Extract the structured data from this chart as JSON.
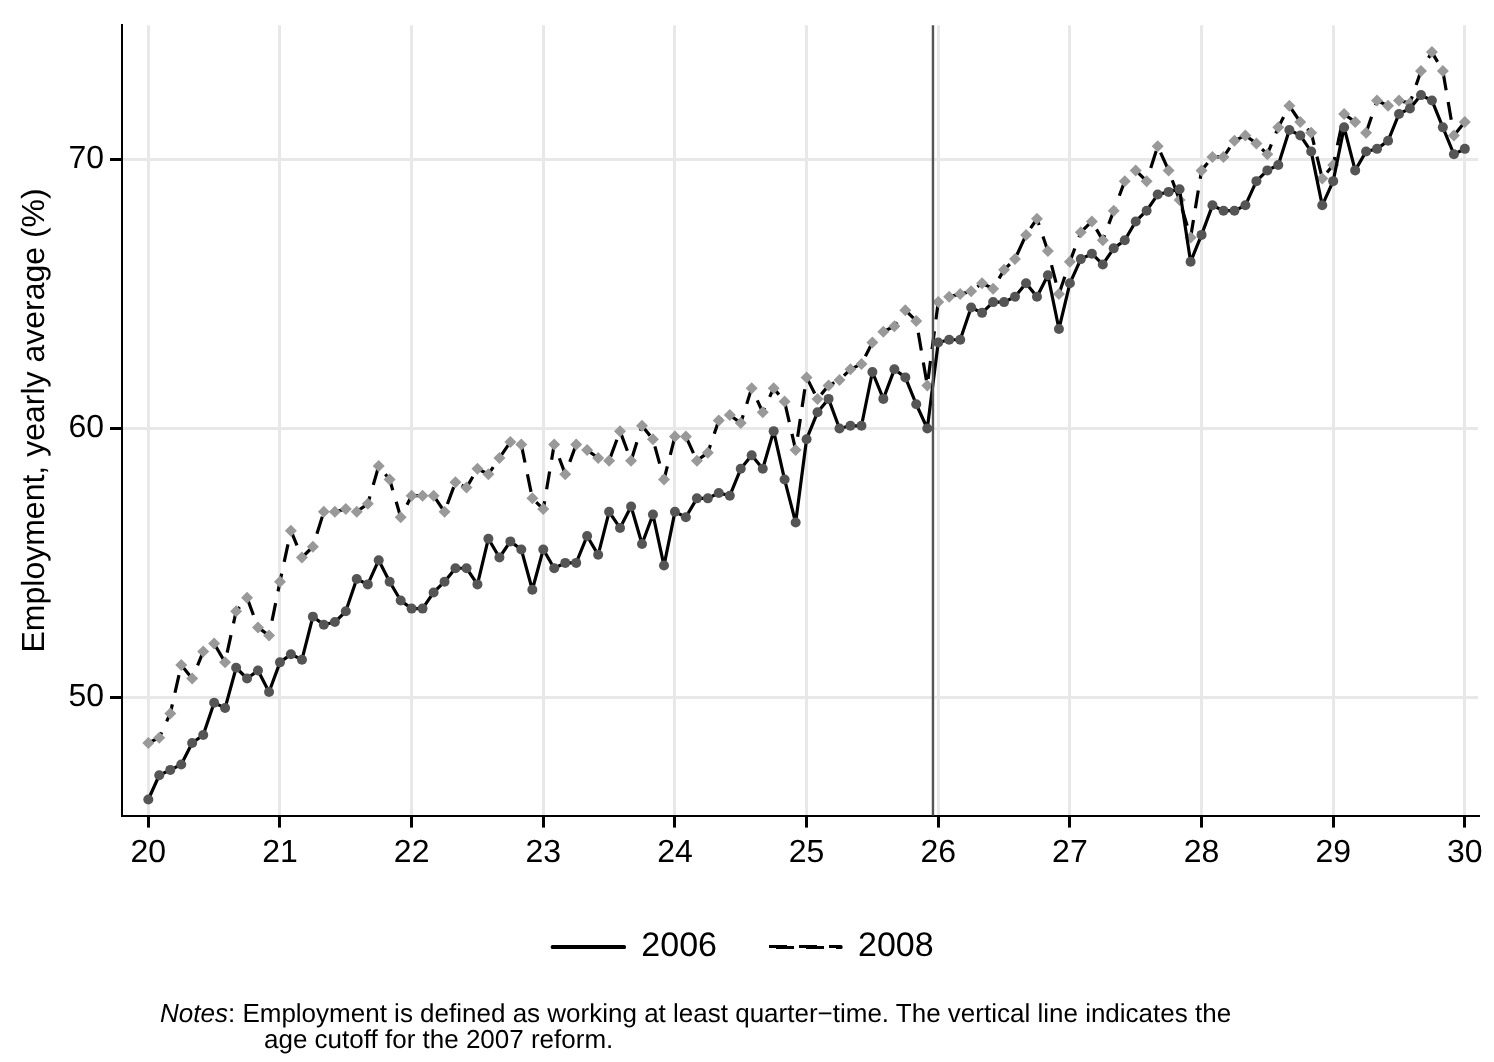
{
  "chart_data": {
    "type": "line",
    "ylabel": "Employment, yearly average (%)",
    "x": [
      20,
      20.083,
      20.167,
      20.25,
      20.333,
      20.417,
      20.5,
      20.583,
      20.667,
      20.75,
      20.833,
      20.917,
      21,
      21.083,
      21.167,
      21.25,
      21.333,
      21.417,
      21.5,
      21.583,
      21.667,
      21.75,
      21.833,
      21.917,
      22,
      22.083,
      22.167,
      22.25,
      22.333,
      22.417,
      22.5,
      22.583,
      22.667,
      22.75,
      22.833,
      22.917,
      23,
      23.083,
      23.167,
      23.25,
      23.333,
      23.417,
      23.5,
      23.583,
      23.667,
      23.75,
      23.833,
      23.917,
      24,
      24.083,
      24.167,
      24.25,
      24.333,
      24.417,
      24.5,
      24.583,
      24.667,
      24.75,
      24.833,
      24.917,
      25,
      25.083,
      25.167,
      25.25,
      25.333,
      25.417,
      25.5,
      25.583,
      25.667,
      25.75,
      25.833,
      25.917,
      26,
      26.083,
      26.167,
      26.25,
      26.333,
      26.417,
      26.5,
      26.583,
      26.667,
      26.75,
      26.833,
      26.917,
      27,
      27.083,
      27.167,
      27.25,
      27.333,
      27.417,
      27.5,
      27.583,
      27.667,
      27.75,
      27.833,
      27.917,
      28,
      28.083,
      28.167,
      28.25,
      28.333,
      28.417,
      28.5,
      28.583,
      28.667,
      28.75,
      28.833,
      28.917,
      29,
      29.083,
      29.167,
      29.25,
      29.333,
      29.417,
      29.5,
      29.583,
      29.667,
      29.75,
      29.833,
      29.917,
      30
    ],
    "series": [
      {
        "name": "2006",
        "color": "#000000",
        "marker": "circle",
        "line_style": "solid",
        "values": [
          46.2,
          47.1,
          47.3,
          47.5,
          48.3,
          48.6,
          49.8,
          49.6,
          51.1,
          50.7,
          51.0,
          50.2,
          51.3,
          51.6,
          51.4,
          53.0,
          52.7,
          52.8,
          53.2,
          54.4,
          54.2,
          55.1,
          54.3,
          53.6,
          53.3,
          53.3,
          53.9,
          54.3,
          54.8,
          54.8,
          54.2,
          55.9,
          55.2,
          55.8,
          55.5,
          54.0,
          55.5,
          54.8,
          55.0,
          55.0,
          56.0,
          55.3,
          56.9,
          56.3,
          57.1,
          55.7,
          56.8,
          54.9,
          56.9,
          56.7,
          57.4,
          57.4,
          57.6,
          57.5,
          58.5,
          59.0,
          58.5,
          59.9,
          58.1,
          56.5,
          59.6,
          60.6,
          61.1,
          60.0,
          60.1,
          60.1,
          62.1,
          61.1,
          62.2,
          61.9,
          60.9,
          60.0,
          63.2,
          63.3,
          63.3,
          64.5,
          64.3,
          64.7,
          64.7,
          64.9,
          65.4,
          64.9,
          65.7,
          63.7,
          65.4,
          66.3,
          66.5,
          66.1,
          66.7,
          67.0,
          67.7,
          68.1,
          68.7,
          68.8,
          68.9,
          66.2,
          67.2,
          68.3,
          68.1,
          68.1,
          68.3,
          69.2,
          69.6,
          69.8,
          71.1,
          70.9,
          70.3,
          68.3,
          69.2,
          71.2,
          69.6,
          70.3,
          70.4,
          70.7,
          71.7,
          71.9,
          72.4,
          72.2,
          71.2,
          70.2,
          70.4
        ]
      },
      {
        "name": "2008",
        "color": "#000000",
        "marker": "diamond",
        "line_style": "dashed",
        "values": [
          48.3,
          48.5,
          49.4,
          51.2,
          50.7,
          51.7,
          52.0,
          51.3,
          53.2,
          53.7,
          52.6,
          52.3,
          54.3,
          56.2,
          55.2,
          55.6,
          56.9,
          56.9,
          57.0,
          56.9,
          57.2,
          58.6,
          58.1,
          56.7,
          57.5,
          57.5,
          57.5,
          56.9,
          58.0,
          57.8,
          58.5,
          58.3,
          58.9,
          59.5,
          59.4,
          57.4,
          57.0,
          59.4,
          58.3,
          59.4,
          59.2,
          58.9,
          58.8,
          59.9,
          58.8,
          60.1,
          59.6,
          58.1,
          59.7,
          59.7,
          58.8,
          59.1,
          60.3,
          60.5,
          60.2,
          61.5,
          60.6,
          61.5,
          61.0,
          59.2,
          61.9,
          61.1,
          61.6,
          61.8,
          62.2,
          62.4,
          63.2,
          63.6,
          63.8,
          64.4,
          64.0,
          61.6,
          64.7,
          64.9,
          65.0,
          65.1,
          65.4,
          65.2,
          65.9,
          66.3,
          67.2,
          67.8,
          66.6,
          65.0,
          66.2,
          67.3,
          67.7,
          67.0,
          68.1,
          69.2,
          69.6,
          69.2,
          70.5,
          69.6,
          68.5,
          67.1,
          69.6,
          70.1,
          70.1,
          70.7,
          70.9,
          70.6,
          70.2,
          71.2,
          72.0,
          71.4,
          71.0,
          69.3,
          69.8,
          71.7,
          71.4,
          71.0,
          72.2,
          72.0,
          72.2,
          72.1,
          73.3,
          74.0,
          73.3,
          70.9,
          71.4
        ]
      }
    ],
    "xlim": [
      19.8,
      30.1
    ],
    "xticks": [
      20,
      21,
      22,
      23,
      24,
      25,
      26,
      27,
      28,
      29,
      30
    ],
    "ylim": [
      45.6,
      75
    ],
    "yticks": [
      50,
      60,
      70
    ],
    "grid": true,
    "legend": "bottom",
    "ref_lines": [
      {
        "axis": "x",
        "value": 25.96,
        "color": "#555555"
      }
    ],
    "annotations": [
      "Notes: Employment is defined as working at least quarter−time. The vertical line indicates the age cutoff for the 2007 reform."
    ]
  }
}
